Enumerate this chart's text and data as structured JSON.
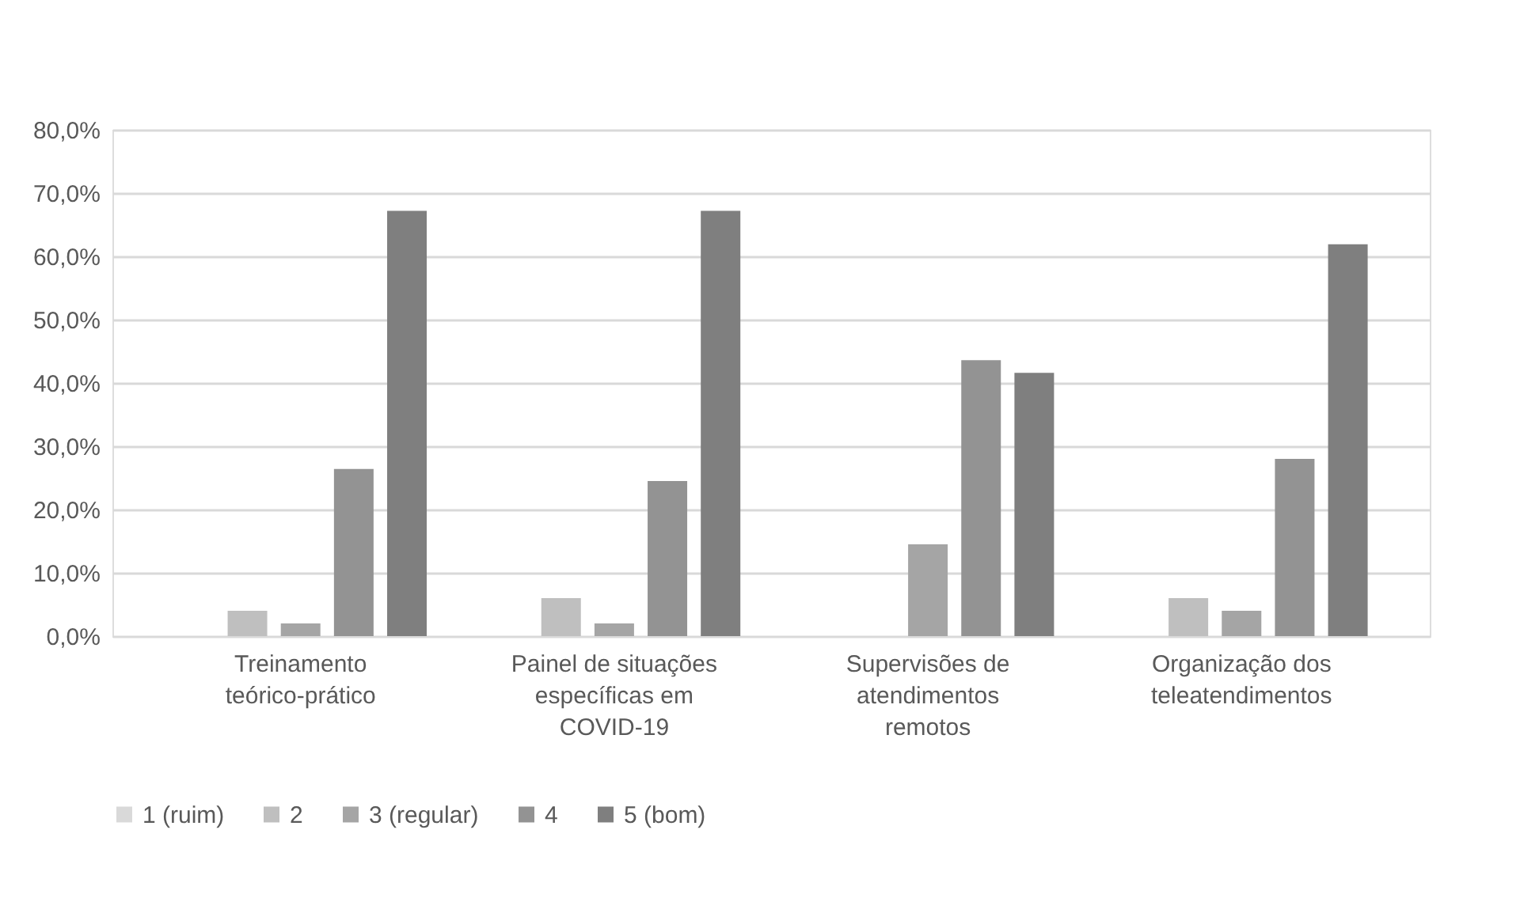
{
  "chart_data": {
    "type": "bar",
    "categories": [
      "Treinamento teórico-prático",
      "Painel de situações específicas em COVID-19",
      "Supervisões de atendimentos remotos",
      "Organização dos teleatendimentos"
    ],
    "series": [
      {
        "name": "1 (ruim)",
        "color": "#d9d9d9",
        "values": [
          0,
          0,
          0,
          0
        ]
      },
      {
        "name": "2",
        "color": "#bfbfbf",
        "values": [
          4.0,
          6.0,
          0,
          6.0
        ]
      },
      {
        "name": "3 (regular)",
        "color": "#a5a5a5",
        "values": [
          2.0,
          2.0,
          14.5,
          4.0
        ]
      },
      {
        "name": "4",
        "color": "#939393",
        "values": [
          26.4,
          24.5,
          43.6,
          28.0
        ]
      },
      {
        "name": "5 (bom)",
        "color": "#7f7f7f",
        "values": [
          67.2,
          67.2,
          41.6,
          61.9
        ]
      }
    ],
    "ylim": [
      0,
      80
    ],
    "yticks": [
      {
        "value": 0,
        "label": "0,0%"
      },
      {
        "value": 10,
        "label": "10,0%"
      },
      {
        "value": 20,
        "label": "20,0%"
      },
      {
        "value": 30,
        "label": "30,0%"
      },
      {
        "value": 40,
        "label": "40,0%"
      },
      {
        "value": 50,
        "label": "50,0%"
      },
      {
        "value": 60,
        "label": "60,0%"
      },
      {
        "value": 70,
        "label": "70,0%"
      },
      {
        "value": 80,
        "label": "80,0%"
      }
    ],
    "grid": "y",
    "legend": "bottom"
  }
}
